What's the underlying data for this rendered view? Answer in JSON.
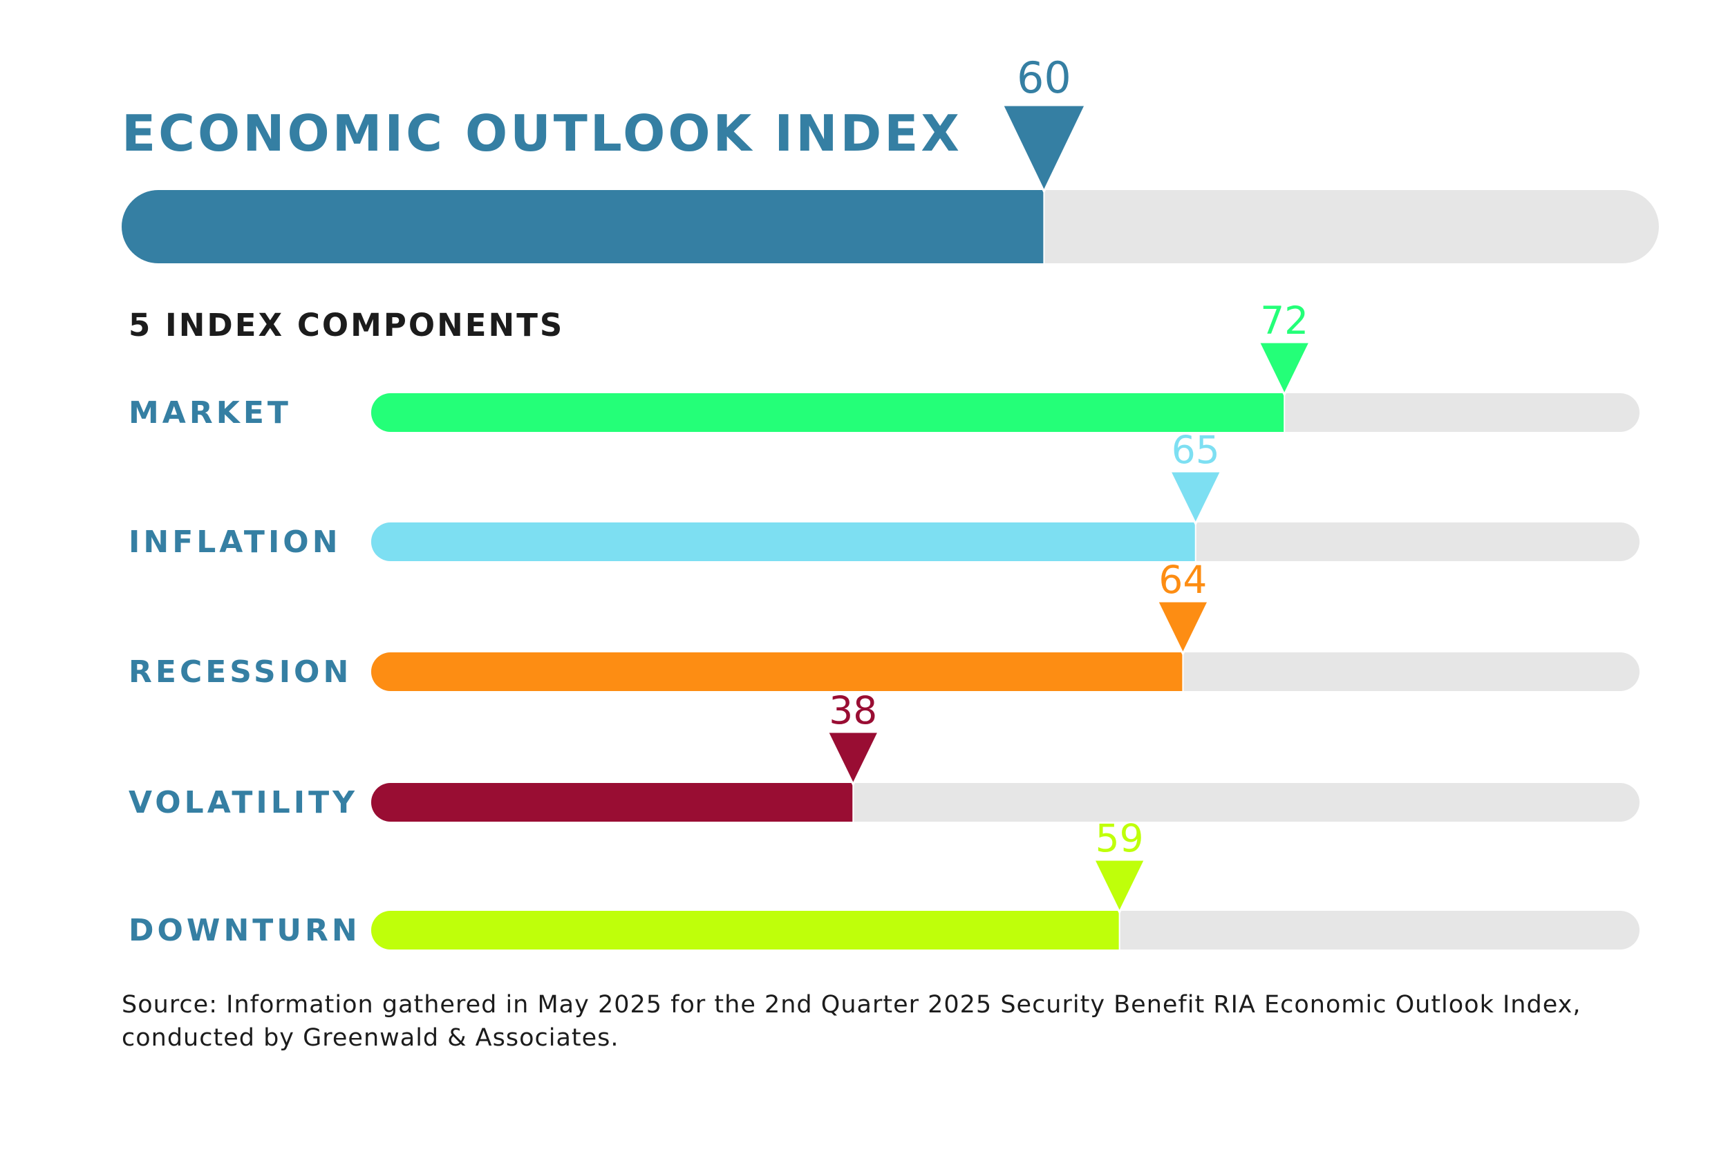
{
  "chart_data": {
    "type": "bar",
    "orientation": "horizontal",
    "title": "ECONOMIC OUTLOOK INDEX",
    "xlim": [
      0,
      100
    ],
    "grid": false,
    "overall": {
      "value": 60,
      "color": "#357fa3"
    },
    "section_heading": "5 INDEX COMPONENTS",
    "categories": [
      "MARKET",
      "INFLATION",
      "RECESSION",
      "VOLATILITY",
      "DOWNTURN"
    ],
    "values": [
      72,
      65,
      64,
      38,
      59
    ],
    "colors": [
      "#24ff78",
      "#7ddff2",
      "#fd8d13",
      "#990d33",
      "#bfff0a"
    ],
    "label_color": "#357fa3",
    "track_color": "#e6e6e6",
    "source": "Source: Information gathered in May 2025 for the 2nd Quarter 2025 Security Benefit RIA Economic Outlook Index, conducted by Greenwald & Associates."
  }
}
